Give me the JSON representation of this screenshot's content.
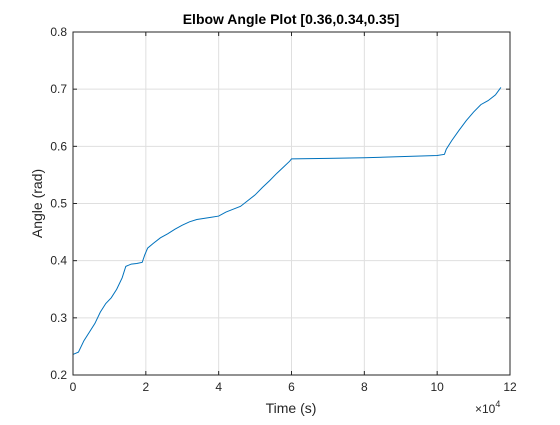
{
  "chart_data": {
    "type": "line",
    "title": "Elbow Angle Plot [0.36,0.34,0.35]",
    "xlabel": "Time (s)",
    "ylabel": "Angle (rad)",
    "x_multiplier_label": "×10",
    "x_multiplier_exponent": "4",
    "xlim": [
      0,
      12
    ],
    "ylim": [
      0.2,
      0.8
    ],
    "xticks": [
      0,
      2,
      4,
      6,
      8,
      10,
      12
    ],
    "xtick_labels": [
      "0",
      "2",
      "4",
      "6",
      "8",
      "10",
      "12"
    ],
    "yticks": [
      0.2,
      0.3,
      0.4,
      0.5,
      0.6,
      0.7,
      0.8
    ],
    "ytick_labels": [
      "0.2",
      "0.3",
      "0.4",
      "0.5",
      "0.6",
      "0.7",
      "0.8"
    ],
    "grid": true,
    "line_color": "#0072bd",
    "series": [
      {
        "x": [
          0.0,
          0.15,
          0.3,
          0.45,
          0.6,
          0.75,
          0.9,
          1.05,
          1.2,
          1.35,
          1.45,
          1.6,
          1.75,
          1.9,
          1.97,
          2.05,
          2.2,
          2.4,
          2.6,
          2.8,
          3.0,
          3.2,
          3.4,
          3.6,
          3.8,
          4.0,
          4.2,
          4.4,
          4.6,
          4.8,
          5.0,
          5.2,
          5.4,
          5.6,
          5.8,
          5.95,
          6.0,
          7.0,
          8.0,
          9.0,
          10.0,
          10.2,
          10.25,
          10.4,
          10.6,
          10.8,
          11.0,
          11.2,
          11.4,
          11.6,
          11.75
        ],
        "y": [
          0.236,
          0.24,
          0.26,
          0.275,
          0.29,
          0.31,
          0.325,
          0.335,
          0.35,
          0.37,
          0.39,
          0.394,
          0.395,
          0.397,
          0.41,
          0.422,
          0.43,
          0.44,
          0.447,
          0.455,
          0.462,
          0.468,
          0.472,
          0.474,
          0.476,
          0.478,
          0.485,
          0.49,
          0.495,
          0.505,
          0.515,
          0.528,
          0.54,
          0.553,
          0.565,
          0.574,
          0.578,
          0.579,
          0.58,
          0.582,
          0.584,
          0.586,
          0.595,
          0.61,
          0.628,
          0.645,
          0.66,
          0.673,
          0.68,
          0.69,
          0.703
        ]
      }
    ]
  }
}
